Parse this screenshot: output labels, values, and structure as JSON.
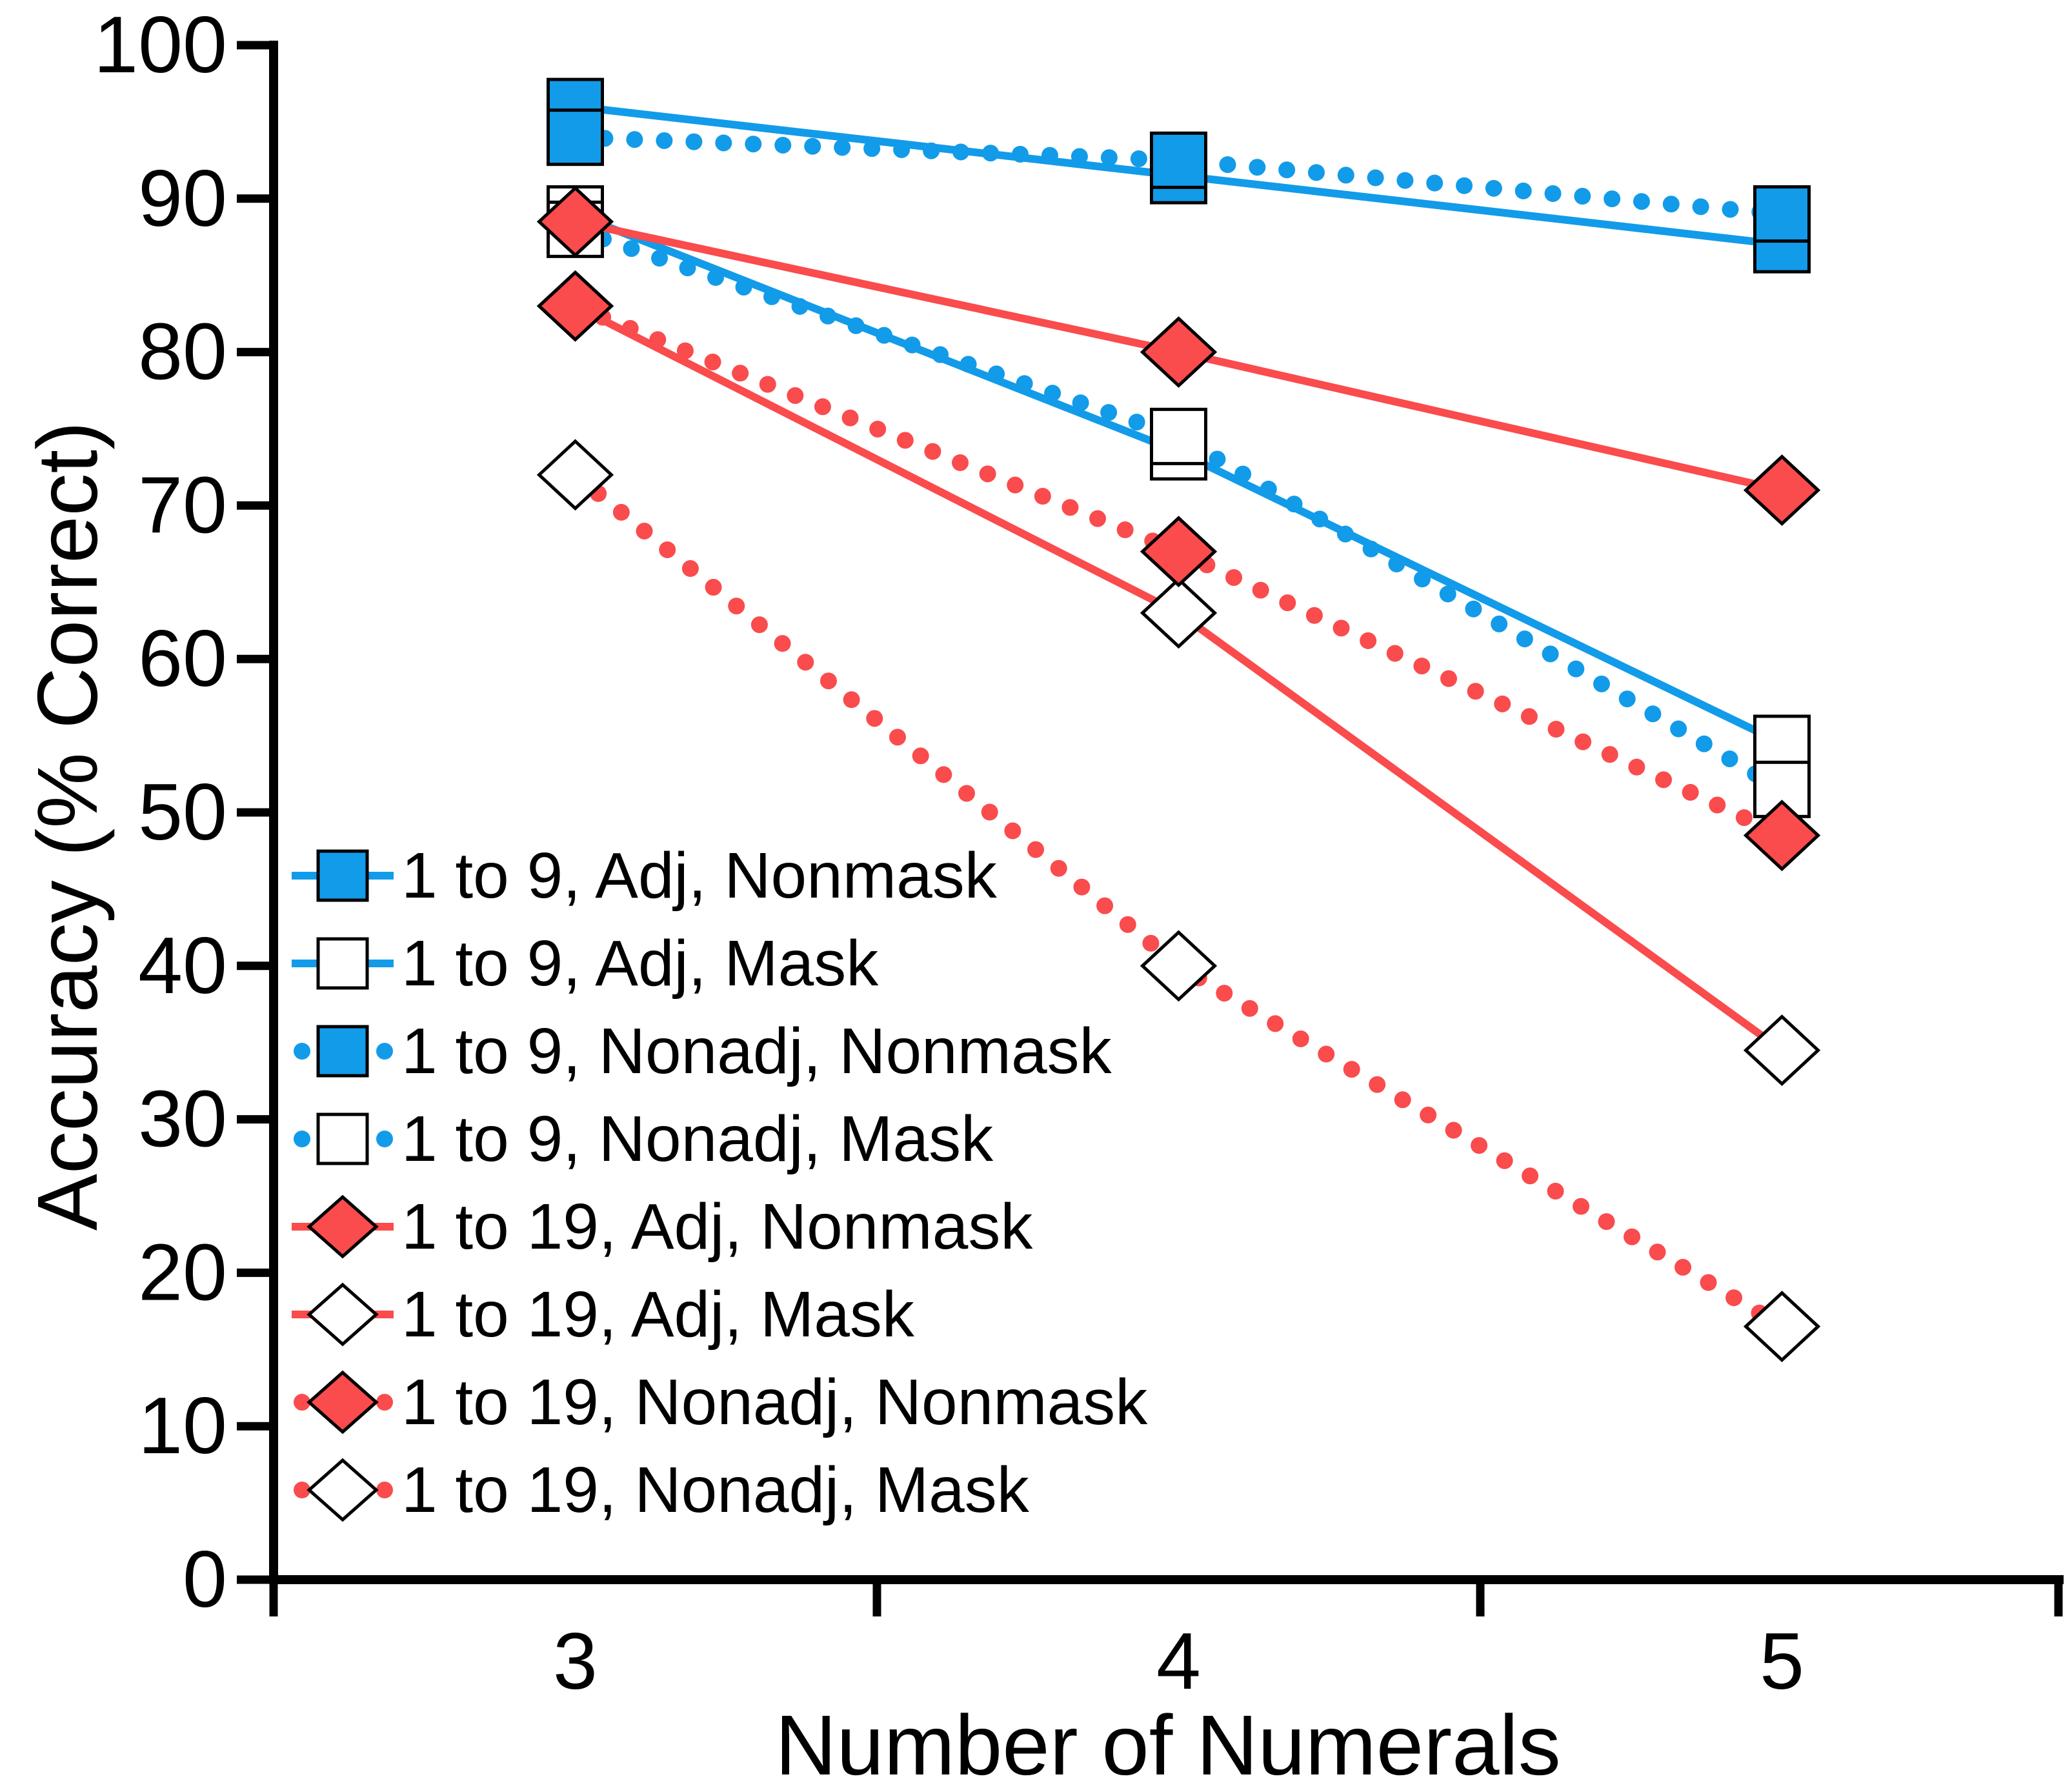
{
  "figure": {
    "background": "#ffffff",
    "text_color": "#000000"
  },
  "palette": {
    "blue": "#129BE9",
    "red": "#FA4B4D",
    "black": "#000000",
    "white": "#ffffff"
  },
  "chart_data": {
    "type": "line",
    "title": "",
    "xlabel": "Number of Numerals",
    "ylabel": "Accuracy (% Correct)",
    "x_categories": [
      "3",
      "4",
      "5"
    ],
    "ylim": [
      0,
      100
    ],
    "y_tick_labels": [
      "0",
      "10",
      "20",
      "30",
      "40",
      "50",
      "60",
      "70",
      "80",
      "90",
      "100"
    ],
    "grid": false,
    "legend_position": "inside-lower-left",
    "series": [
      {
        "name": "1 to 9, Adj, Nonmask",
        "color": "blue",
        "line": "solid",
        "marker": "square",
        "marker_fill": "filled",
        "values": [
          96,
          91.5,
          87
        ]
      },
      {
        "name": "1 to 9, Adj, Mask",
        "color": "blue",
        "line": "solid",
        "marker": "square",
        "marker_fill": "open",
        "values": [
          89,
          73.5,
          54.5
        ]
      },
      {
        "name": "1 to 9, Nonadj, Nonmask",
        "color": "blue",
        "line": "dotted",
        "marker": "square",
        "marker_fill": "filled",
        "values": [
          94,
          92.5,
          89
        ]
      },
      {
        "name": "1 to 9, Nonadj, Mask",
        "color": "blue",
        "line": "dotted",
        "marker": "square",
        "marker_fill": "open",
        "values": [
          88,
          74.5,
          51.5
        ]
      },
      {
        "name": "1 to 19, Adj, Nonmask",
        "color": "red",
        "line": "solid",
        "marker": "diamond",
        "marker_fill": "filled",
        "values": [
          88.5,
          80,
          71
        ]
      },
      {
        "name": "1 to 19, Adj, Mask",
        "color": "red",
        "line": "solid",
        "marker": "diamond",
        "marker_fill": "open",
        "values": [
          83,
          63,
          34.5
        ]
      },
      {
        "name": "1 to 19, Nonadj, Nonmask",
        "color": "red",
        "line": "dotted",
        "marker": "diamond",
        "marker_fill": "filled",
        "values": [
          83,
          67,
          48.5
        ]
      },
      {
        "name": "1 to 19, Nonadj, Mask",
        "color": "red",
        "line": "dotted",
        "marker": "diamond",
        "marker_fill": "open",
        "values": [
          72,
          40,
          16.5
        ]
      }
    ]
  }
}
